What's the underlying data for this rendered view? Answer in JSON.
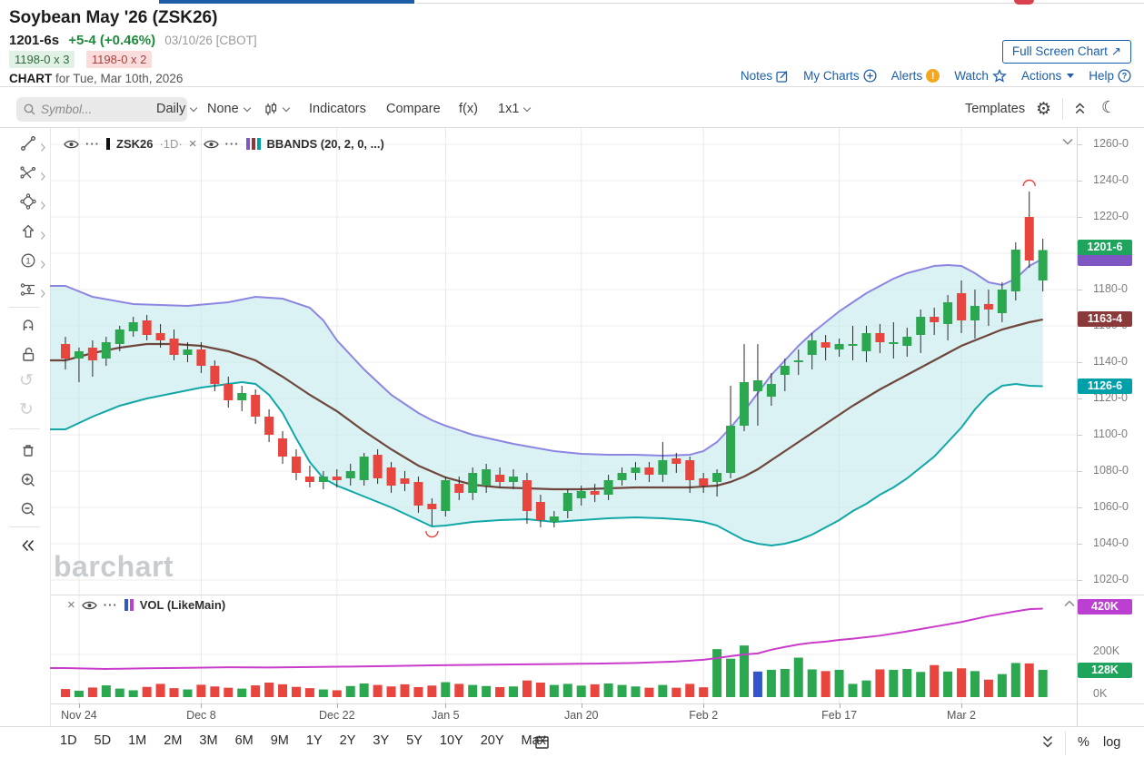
{
  "header": {
    "title": "Soybean May '26 (ZSK26)",
    "price": "1201-6s",
    "change": "+5-4 (+0.46%)",
    "date_exchange": "03/10/26 [CBOT]",
    "bid": "1198-0 x 3",
    "ask": "1198-0 x 2",
    "chart_for_label": "CHART",
    "chart_for_date": " for Tue, Mar 10th, 2026",
    "fullscreen_label": "Full Screen Chart",
    "links": [
      "Notes",
      "My Charts",
      "Alerts",
      "Watch",
      "Actions",
      "Help"
    ]
  },
  "toolbar": {
    "search_placeholder": "Symbol...",
    "period": "Daily",
    "tool": "None",
    "indicators": "Indicators",
    "compare": "Compare",
    "fx": "f(x)",
    "grid": "1x1",
    "templates": "Templates"
  },
  "sidebar_tools": [
    "trend-line",
    "multi-line",
    "shapes",
    "arrow-mark",
    "number-annotation",
    "measure",
    "magnet",
    "unlock",
    "undo",
    "redo",
    "delete",
    "zoom-in",
    "zoom-out",
    "collapse"
  ],
  "legend": {
    "main": {
      "symbol": "ZSK26",
      "interval": "·1D·",
      "study": "BBANDS (20, 2, 0, ...)"
    },
    "vol": {
      "label": "VOL (LikeMain)"
    }
  },
  "watermark": "barchart",
  "bottom": {
    "ranges": [
      "1D",
      "5D",
      "1M",
      "2M",
      "3M",
      "6M",
      "9M",
      "1Y",
      "2Y",
      "3Y",
      "5Y",
      "10Y",
      "20Y",
      "Max"
    ],
    "percent": "%",
    "log": "log"
  },
  "colors": {
    "up": "#2ba84f",
    "down": "#e8453f",
    "wick": "#2a2a2a",
    "volume_blue": "#3355cc",
    "band_upper": "#8c86e2",
    "band_mid": "#6f463c",
    "band_lower": "#12a7a7",
    "band_fill": "#bce7ea",
    "oi_line": "#c93ccb",
    "badge_last": "#1ea45c",
    "badge_upper": "#7e57c2",
    "badge_mid": "#8b3a3a",
    "badge_lower": "#00a0ab",
    "badge_vol_line": "#bb3fd1",
    "badge_vol_last": "#1ea45c",
    "link": "#1b5eab"
  },
  "chart_data": {
    "type": "candlestick",
    "symbol": "ZSK26",
    "interval": "1D",
    "study": "BBANDS (20, 2, 0, ...)",
    "price_axis": {
      "min": 1020,
      "max": 1260,
      "step": 20,
      "labels": [
        "1260-0",
        "1240-0",
        "1220-0",
        "1200-0",
        "1180-0",
        "1160-0",
        "1140-0",
        "1120-0",
        "1100-0",
        "1080-0",
        "1060-0",
        "1040-0",
        "1020-0"
      ]
    },
    "badges": {
      "last": "1201-6",
      "mid": "1163-4",
      "lower": "1126-6",
      "vol_line": "420K",
      "vol_last": "128K"
    },
    "time_ticks": [
      {
        "i": 1,
        "label": "Nov 24"
      },
      {
        "i": 10,
        "label": "Dec 8"
      },
      {
        "i": 20,
        "label": "Dec 22"
      },
      {
        "i": 28,
        "label": "Jan 5"
      },
      {
        "i": 38,
        "label": "Jan 20"
      },
      {
        "i": 47,
        "label": "Feb 2"
      },
      {
        "i": 57,
        "label": "Feb 17"
      },
      {
        "i": 66,
        "label": "Mar 2"
      }
    ],
    "candles": [
      [
        1150,
        1154,
        1136,
        1142
      ],
      [
        1142,
        1148,
        1129,
        1146
      ],
      [
        1148,
        1152,
        1132,
        1141
      ],
      [
        1142,
        1154,
        1138,
        1151
      ],
      [
        1150,
        1160,
        1146,
        1158
      ],
      [
        1157,
        1165,
        1154,
        1162
      ],
      [
        1163,
        1166,
        1152,
        1155
      ],
      [
        1156,
        1161,
        1148,
        1152
      ],
      [
        1153,
        1158,
        1141,
        1144
      ],
      [
        1144,
        1151,
        1140,
        1147
      ],
      [
        1147,
        1151,
        1134,
        1138
      ],
      [
        1138,
        1141,
        1124,
        1128
      ],
      [
        1128,
        1132,
        1115,
        1119
      ],
      [
        1119,
        1127,
        1113,
        1123
      ],
      [
        1122,
        1125,
        1106,
        1110
      ],
      [
        1110,
        1114,
        1096,
        1100
      ],
      [
        1098,
        1102,
        1084,
        1088
      ],
      [
        1088,
        1092,
        1075,
        1079
      ],
      [
        1077,
        1083,
        1071,
        1074
      ],
      [
        1074,
        1080,
        1070,
        1077
      ],
      [
        1077,
        1081,
        1071,
        1075
      ],
      [
        1076,
        1084,
        1072,
        1080
      ],
      [
        1075,
        1090,
        1072,
        1088
      ],
      [
        1089,
        1092,
        1073,
        1076
      ],
      [
        1082,
        1085,
        1068,
        1072
      ],
      [
        1076,
        1080,
        1069,
        1073
      ],
      [
        1074,
        1077,
        1057,
        1061
      ],
      [
        1062,
        1065,
        1050,
        1059
      ],
      [
        1058,
        1077,
        1055,
        1075
      ],
      [
        1073,
        1077,
        1064,
        1068
      ],
      [
        1068,
        1082,
        1064,
        1079
      ],
      [
        1072,
        1084,
        1068,
        1081
      ],
      [
        1078,
        1082,
        1071,
        1074
      ],
      [
        1074,
        1081,
        1070,
        1077
      ],
      [
        1075,
        1079,
        1051,
        1058
      ],
      [
        1063,
        1067,
        1049,
        1053
      ],
      [
        1052,
        1058,
        1049,
        1055
      ],
      [
        1058,
        1070,
        1054,
        1068
      ],
      [
        1065,
        1072,
        1061,
        1069
      ],
      [
        1069,
        1073,
        1063,
        1067
      ],
      [
        1067,
        1078,
        1064,
        1075
      ],
      [
        1075,
        1082,
        1072,
        1079
      ],
      [
        1079,
        1085,
        1075,
        1082
      ],
      [
        1082,
        1085,
        1074,
        1078
      ],
      [
        1078,
        1096,
        1074,
        1086
      ],
      [
        1087,
        1090,
        1079,
        1084
      ],
      [
        1086,
        1088,
        1068,
        1075
      ],
      [
        1076,
        1079,
        1068,
        1072
      ],
      [
        1074,
        1081,
        1066,
        1079
      ],
      [
        1079,
        1127,
        1076,
        1105
      ],
      [
        1105,
        1150,
        1102,
        1129
      ],
      [
        1124,
        1150,
        1105,
        1130
      ],
      [
        1121,
        1134,
        1116,
        1128
      ],
      [
        1133,
        1142,
        1124,
        1138
      ],
      [
        1140,
        1147,
        1133,
        1141
      ],
      [
        1144,
        1156,
        1136,
        1152
      ],
      [
        1151,
        1155,
        1141,
        1148
      ],
      [
        1147,
        1153,
        1143,
        1150
      ],
      [
        1149,
        1160,
        1141,
        1150
      ],
      [
        1146,
        1160,
        1140,
        1156
      ],
      [
        1156,
        1161,
        1145,
        1151
      ],
      [
        1150,
        1162,
        1142,
        1151
      ],
      [
        1149,
        1159,
        1143,
        1154
      ],
      [
        1155,
        1169,
        1145,
        1165
      ],
      [
        1165,
        1170,
        1155,
        1162
      ],
      [
        1161,
        1177,
        1152,
        1173
      ],
      [
        1178,
        1185,
        1156,
        1163
      ],
      [
        1163,
        1180,
        1153,
        1171
      ],
      [
        1172,
        1180,
        1160,
        1169
      ],
      [
        1167,
        1184,
        1162,
        1180
      ],
      [
        1179,
        1206,
        1174,
        1202
      ],
      [
        1220,
        1234,
        1192,
        1196
      ],
      [
        1185,
        1208,
        1179,
        1201.75
      ]
    ],
    "bollinger": {
      "upper": [
        [
          0,
          1182
        ],
        [
          2,
          1176
        ],
        [
          5,
          1172
        ],
        [
          9,
          1171
        ],
        [
          12,
          1173
        ],
        [
          14,
          1176
        ],
        [
          16,
          1175
        ],
        [
          18,
          1170
        ],
        [
          19,
          1163
        ],
        [
          20,
          1152
        ],
        [
          21,
          1144
        ],
        [
          22,
          1136
        ],
        [
          23,
          1129
        ],
        [
          24,
          1122
        ],
        [
          25,
          1117
        ],
        [
          26,
          1112
        ],
        [
          27,
          1108
        ],
        [
          28,
          1105
        ],
        [
          30,
          1100
        ],
        [
          33,
          1095
        ],
        [
          36,
          1091
        ],
        [
          38,
          1089.5
        ],
        [
          40,
          1089
        ],
        [
          42,
          1089
        ],
        [
          44,
          1088.5
        ],
        [
          46,
          1089
        ],
        [
          47,
          1091
        ],
        [
          48,
          1096
        ],
        [
          49,
          1104
        ],
        [
          50,
          1113
        ],
        [
          51,
          1123
        ],
        [
          52,
          1133
        ],
        [
          53,
          1141
        ],
        [
          54,
          1149
        ],
        [
          55,
          1156
        ],
        [
          56,
          1162
        ],
        [
          57,
          1168
        ],
        [
          58,
          1173
        ],
        [
          59,
          1178
        ],
        [
          60,
          1182
        ],
        [
          61,
          1186
        ],
        [
          62,
          1189
        ],
        [
          63,
          1191
        ],
        [
          64,
          1193
        ],
        [
          65,
          1193.5
        ],
        [
          66,
          1193
        ],
        [
          67,
          1189
        ],
        [
          68,
          1184
        ],
        [
          69,
          1182.5
        ],
        [
          70,
          1186
        ],
        [
          71,
          1193
        ],
        [
          72,
          1197
        ]
      ],
      "middle": [
        [
          0,
          1141
        ],
        [
          2,
          1145
        ],
        [
          4,
          1148
        ],
        [
          6,
          1150
        ],
        [
          8,
          1150
        ],
        [
          10,
          1149
        ],
        [
          12,
          1146
        ],
        [
          14,
          1141
        ],
        [
          16,
          1132
        ],
        [
          18,
          1122
        ],
        [
          20,
          1113
        ],
        [
          22,
          1102
        ],
        [
          24,
          1092
        ],
        [
          26,
          1083
        ],
        [
          28,
          1076.5
        ],
        [
          30,
          1072.5
        ],
        [
          32,
          1071
        ],
        [
          34,
          1070.5
        ],
        [
          36,
          1070
        ],
        [
          38,
          1070
        ],
        [
          40,
          1070.5
        ],
        [
          42,
          1071
        ],
        [
          46,
          1071
        ],
        [
          48,
          1072
        ],
        [
          49,
          1074
        ],
        [
          50,
          1077
        ],
        [
          51,
          1081
        ],
        [
          52,
          1086
        ],
        [
          53,
          1091
        ],
        [
          54,
          1096
        ],
        [
          55,
          1101
        ],
        [
          56,
          1106
        ],
        [
          57,
          1111
        ],
        [
          58,
          1116
        ],
        [
          59,
          1120.5
        ],
        [
          60,
          1125
        ],
        [
          61,
          1129
        ],
        [
          62,
          1133
        ],
        [
          63,
          1137
        ],
        [
          64,
          1141
        ],
        [
          65,
          1145
        ],
        [
          66,
          1149
        ],
        [
          67,
          1152
        ],
        [
          68,
          1155
        ],
        [
          69,
          1158
        ],
        [
          70,
          1160
        ],
        [
          71,
          1162
        ],
        [
          72,
          1163.5
        ]
      ],
      "lower": [
        [
          0,
          1103
        ],
        [
          2,
          1110
        ],
        [
          4,
          1116
        ],
        [
          6,
          1120
        ],
        [
          8,
          1123
        ],
        [
          10,
          1126
        ],
        [
          12,
          1128
        ],
        [
          13,
          1129
        ],
        [
          14,
          1128
        ],
        [
          15,
          1122
        ],
        [
          16,
          1112
        ],
        [
          17,
          1098
        ],
        [
          18,
          1085
        ],
        [
          19,
          1076
        ],
        [
          20,
          1072
        ],
        [
          22,
          1066
        ],
        [
          24,
          1060
        ],
        [
          26,
          1053
        ],
        [
          27,
          1049.5
        ],
        [
          28,
          1050
        ],
        [
          30,
          1052
        ],
        [
          32,
          1053
        ],
        [
          34,
          1053.5
        ],
        [
          36,
          1052
        ],
        [
          38,
          1053
        ],
        [
          40,
          1054
        ],
        [
          42,
          1054.5
        ],
        [
          44,
          1054
        ],
        [
          46,
          1053
        ],
        [
          47,
          1052
        ],
        [
          48,
          1050
        ],
        [
          49,
          1046
        ],
        [
          50,
          1042
        ],
        [
          51,
          1040
        ],
        [
          52,
          1039
        ],
        [
          53,
          1040
        ],
        [
          54,
          1042
        ],
        [
          55,
          1045
        ],
        [
          56,
          1049
        ],
        [
          57,
          1053
        ],
        [
          58,
          1058
        ],
        [
          59,
          1062
        ],
        [
          60,
          1067
        ],
        [
          61,
          1071
        ],
        [
          62,
          1076
        ],
        [
          63,
          1082
        ],
        [
          64,
          1088
        ],
        [
          65,
          1096
        ],
        [
          66,
          1104
        ],
        [
          67,
          1114
        ],
        [
          68,
          1122
        ],
        [
          69,
          1127
        ],
        [
          70,
          1128
        ],
        [
          71,
          1127
        ],
        [
          72,
          1126.75
        ]
      ]
    },
    "volume": {
      "values": [
        38,
        30,
        45,
        55,
        40,
        32,
        48,
        62,
        42,
        36,
        58,
        50,
        44,
        40,
        55,
        68,
        60,
        48,
        42,
        36,
        32,
        52,
        64,
        57,
        50,
        60,
        47,
        54,
        70,
        62,
        57,
        52,
        47,
        50,
        78,
        68,
        57,
        62,
        54,
        60,
        64,
        57,
        50,
        44,
        57,
        44,
        62,
        46,
        225,
        180,
        242,
        120,
        128,
        132,
        185,
        130,
        122,
        128,
        62,
        78,
        130,
        128,
        132,
        118,
        150,
        120,
        135,
        122,
        82,
        108,
        160,
        158,
        128
      ],
      "unit": "K",
      "blue_index": 51,
      "axis_labels": [
        "200K",
        "0K"
      ],
      "line_anchors": [
        [
          0,
          136
        ],
        [
          3,
          132
        ],
        [
          6,
          135
        ],
        [
          9,
          137
        ],
        [
          12,
          140
        ],
        [
          15,
          139
        ],
        [
          18,
          141
        ],
        [
          21,
          143
        ],
        [
          24,
          146
        ],
        [
          27,
          149
        ],
        [
          30,
          151
        ],
        [
          33,
          153
        ],
        [
          36,
          155
        ],
        [
          39,
          157
        ],
        [
          42,
          160
        ],
        [
          45,
          167
        ],
        [
          47,
          175
        ],
        [
          48,
          183
        ],
        [
          49,
          192
        ],
        [
          50,
          200
        ],
        [
          51,
          205
        ],
        [
          52,
          222
        ],
        [
          53,
          235
        ],
        [
          54,
          247
        ],
        [
          55,
          255
        ],
        [
          56,
          260
        ],
        [
          57,
          268
        ],
        [
          58,
          274
        ],
        [
          60,
          288
        ],
        [
          62,
          308
        ],
        [
          64,
          330
        ],
        [
          66,
          352
        ],
        [
          68,
          380
        ],
        [
          70,
          402
        ],
        [
          71,
          412
        ],
        [
          72,
          415
        ]
      ]
    },
    "annotations": [
      {
        "type": "arc-high",
        "i": 71,
        "price": 1237
      },
      {
        "type": "arc-low",
        "i": 27,
        "price": 1047
      }
    ]
  }
}
